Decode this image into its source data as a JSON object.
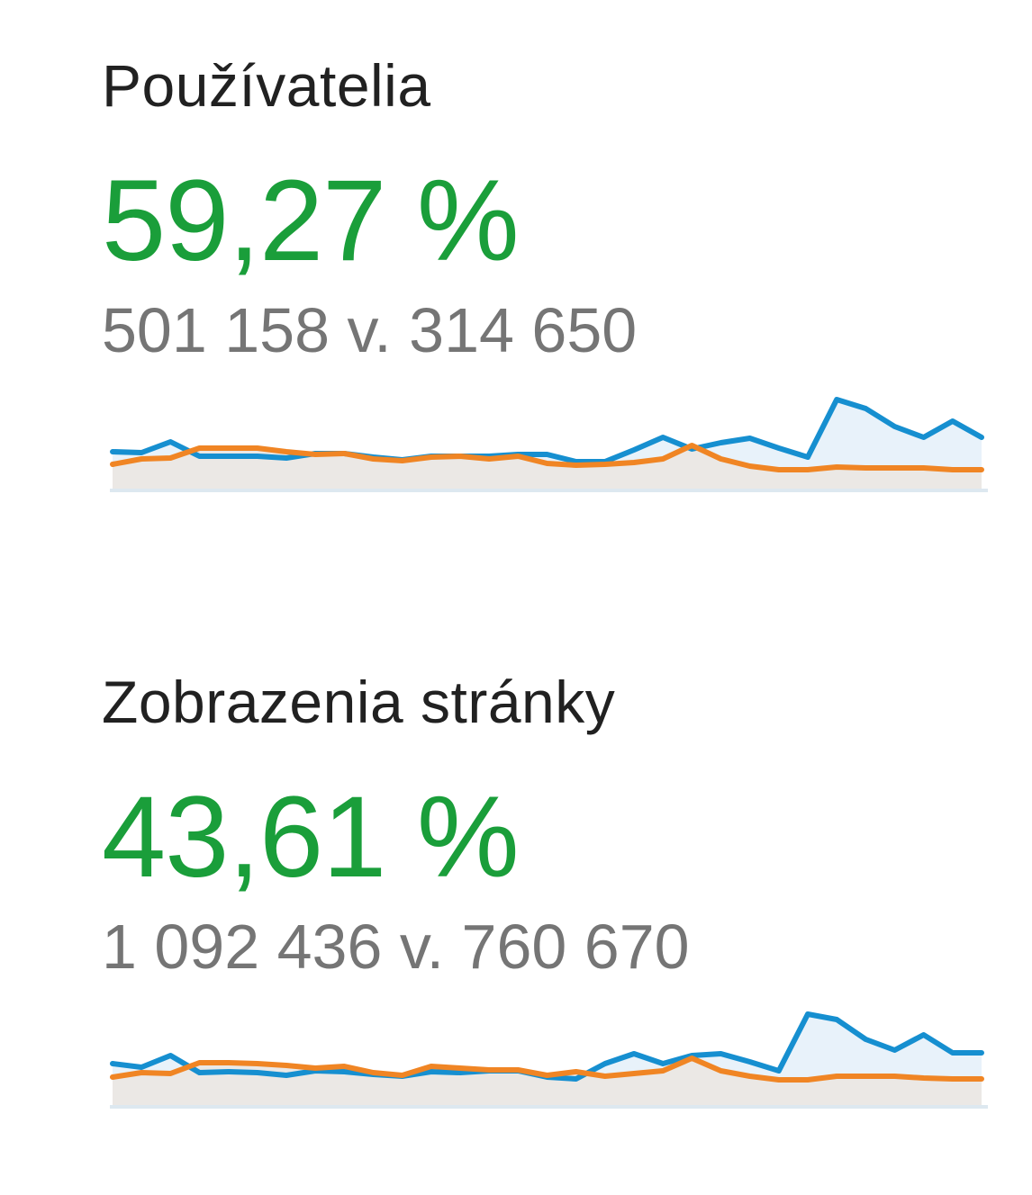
{
  "colors": {
    "positive": "#1a9e3a",
    "current_line": "#168fd0",
    "current_fill": "#e8f2fa",
    "previous_line": "#f08524",
    "previous_fill": "#ebe8e5",
    "baseline": "#dde8f0"
  },
  "metrics": [
    {
      "title": "Používatelia",
      "change": "59,27 %",
      "comparison": "501 158 v. 314 650",
      "chart_data": {
        "type": "area",
        "x": [
          1,
          2,
          3,
          4,
          5,
          6,
          7,
          8,
          9,
          10,
          11,
          12,
          13,
          14,
          15,
          16,
          17,
          18,
          19,
          20,
          21,
          22,
          23,
          24,
          25,
          26,
          27,
          28,
          29,
          30,
          31
        ],
        "series": [
          {
            "values": [
              40,
              39,
              51,
              35,
              35,
              35,
              33,
              38,
              38,
              34,
              31,
              35,
              35,
              35,
              37,
              37,
              29,
              29,
              42,
              56,
              43,
              50,
              55,
              44,
              34,
              98,
              88,
              68,
              56,
              74,
              56
            ]
          },
          {
            "values": [
              26,
              32,
              33,
              44,
              44,
              44,
              40,
              37,
              38,
              32,
              30,
              34,
              35,
              32,
              35,
              27,
              25,
              26,
              28,
              32,
              47,
              32,
              24,
              20,
              20,
              23,
              22,
              22,
              22,
              20,
              20
            ]
          }
        ],
        "ylim": [
          0,
          100
        ]
      }
    },
    {
      "title": "Zobrazenia stránky",
      "change": "43,61 %",
      "comparison": "1 092 436 v. 760 670",
      "chart_data": {
        "type": "area",
        "x": [
          1,
          2,
          3,
          4,
          5,
          6,
          7,
          8,
          9,
          10,
          11,
          12,
          13,
          14,
          15,
          16,
          17,
          18,
          19,
          20,
          21,
          22,
          23,
          24,
          25,
          26,
          27,
          28,
          29,
          30,
          31
        ],
        "series": [
          {
            "values": [
              45,
              41,
              54,
              35,
              36,
              35,
              32,
              37,
              36,
              33,
              31,
              36,
              35,
              37,
              37,
              30,
              28,
              45,
              56,
              45,
              54,
              56,
              47,
              37,
              100,
              94,
              72,
              60,
              77,
              57,
              57
            ]
          },
          {
            "values": [
              30,
              35,
              34,
              46,
              46,
              45,
              43,
              40,
              42,
              35,
              32,
              42,
              40,
              38,
              38,
              32,
              36,
              31,
              34,
              37,
              51,
              37,
              31,
              27,
              27,
              31,
              31,
              31,
              29,
              28,
              28
            ]
          }
        ],
        "ylim": [
          0,
          100
        ]
      }
    }
  ]
}
